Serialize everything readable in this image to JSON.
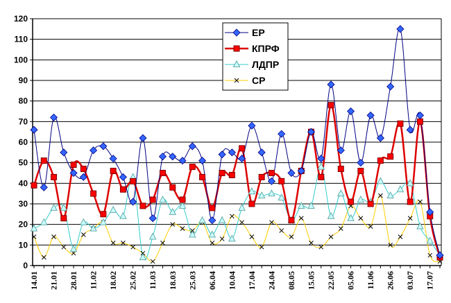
{
  "chart_data": {
    "type": "line",
    "title": "",
    "xlabel": "",
    "ylabel": "",
    "ylim": [
      0,
      120
    ],
    "yticks": [
      0,
      10,
      20,
      30,
      40,
      50,
      60,
      70,
      80,
      90,
      100,
      110,
      120
    ],
    "grid": true,
    "legend_position": "top-center",
    "x_tick_labels": [
      "14.01",
      "21.01",
      "28.01",
      "11.02",
      "18.02",
      "25.02",
      "11.03",
      "18.03",
      "25.03",
      "06.04",
      "10.04",
      "17.04",
      "24.04",
      "08.05",
      "15.05",
      "22.05",
      "05.06",
      "11.06",
      "26.06",
      "03.07",
      "17.07"
    ],
    "point_count": 42,
    "series": [
      {
        "name": "ЕР",
        "color": "#000080",
        "marker": "diamond",
        "marker_color": "#3366ff",
        "values": [
          66,
          38,
          72,
          55,
          45,
          43,
          56,
          58,
          52,
          43,
          31,
          62,
          23,
          53,
          53,
          51,
          58,
          51,
          22,
          54,
          55,
          52,
          68,
          55,
          41,
          64,
          45,
          46,
          65,
          52,
          88,
          56,
          75,
          50,
          73,
          62,
          87,
          115,
          66,
          73,
          26,
          5
        ]
      },
      {
        "name": "КПРФ",
        "color": "#dd0000",
        "marker": "square",
        "marker_color": "#ff0000",
        "values": [
          39,
          51,
          43,
          23,
          49,
          47,
          35,
          25,
          46,
          37,
          41,
          29,
          32,
          45,
          38,
          32,
          48,
          43,
          28,
          45,
          44,
          57,
          30,
          43,
          45,
          41,
          22,
          46,
          65,
          43,
          78,
          47,
          31,
          46,
          30,
          51,
          53,
          69,
          31,
          70,
          24,
          4
        ]
      },
      {
        "name": "ЛДПР",
        "color": "#33cccc",
        "marker": "triangle",
        "marker_color": "#ccffff",
        "values": [
          18,
          21,
          28,
          28,
          8,
          21,
          18,
          21,
          27,
          24,
          43,
          4,
          14,
          32,
          26,
          29,
          15,
          22,
          15,
          22,
          13,
          28,
          36,
          34,
          35,
          33,
          22,
          29,
          29,
          48,
          24,
          35,
          23,
          32,
          31,
          41,
          34,
          37,
          40,
          19,
          12,
          5
        ]
      },
      {
        "name": "СР",
        "color": "#ffcc00",
        "marker": "x",
        "marker_color": "#000000",
        "values": [
          14,
          4,
          14,
          9,
          6,
          15,
          18,
          21,
          11,
          11,
          9,
          6,
          2,
          11,
          20,
          18,
          17,
          21,
          11,
          13,
          24,
          21,
          14,
          9,
          21,
          17,
          14,
          23,
          11,
          9,
          14,
          18,
          29,
          23,
          19,
          34,
          10,
          14,
          23,
          31,
          5,
          2
        ]
      }
    ]
  }
}
